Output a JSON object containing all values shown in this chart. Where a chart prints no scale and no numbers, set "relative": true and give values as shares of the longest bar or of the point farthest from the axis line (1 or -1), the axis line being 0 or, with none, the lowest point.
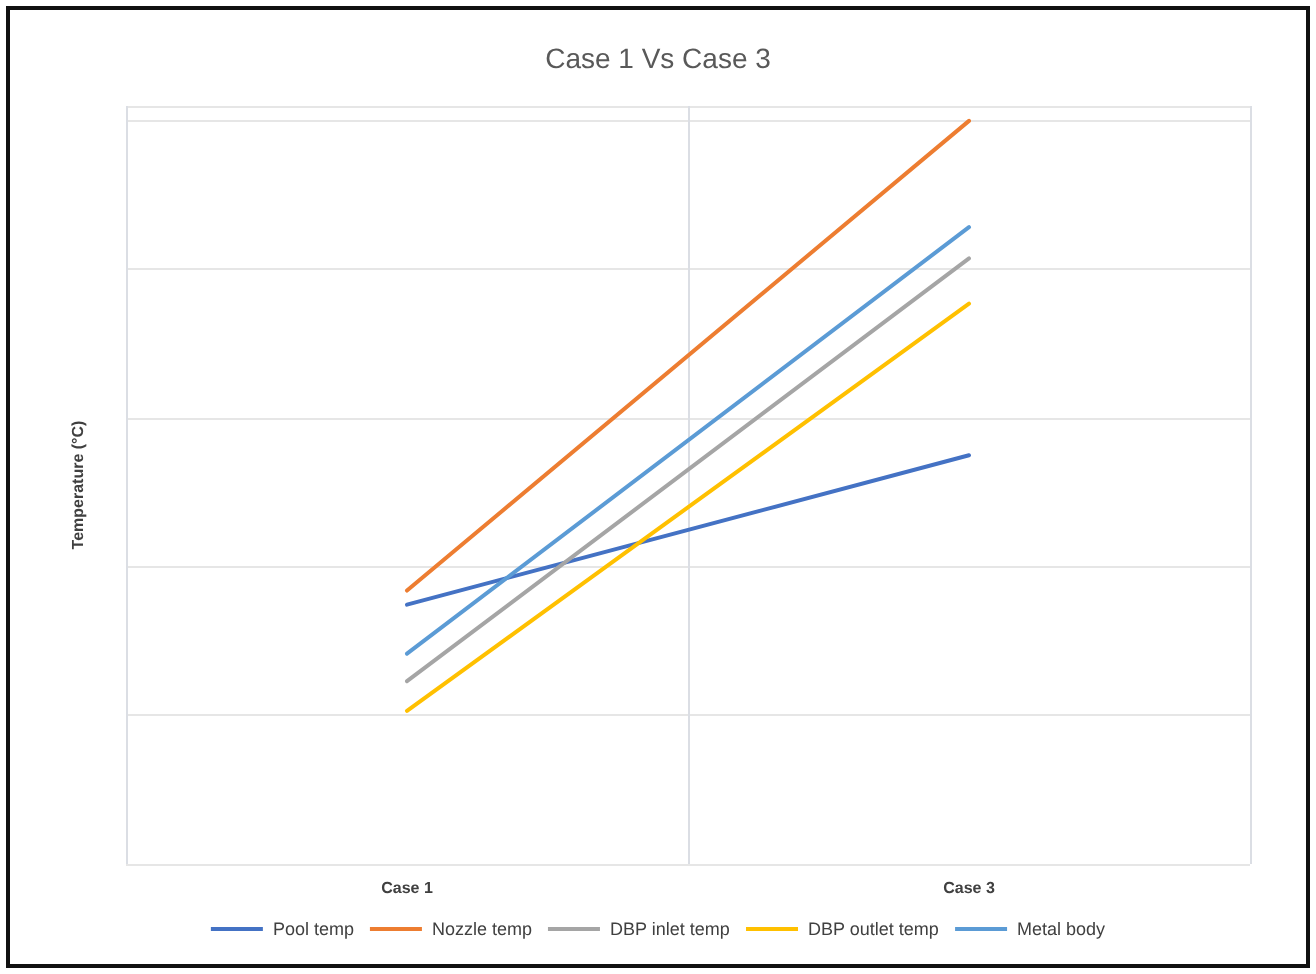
{
  "chart_data": {
    "type": "line",
    "title": "Case 1 Vs Case 3",
    "ylabel": "Temperature (°C)",
    "relative": true,
    "categories": [
      "Case 1",
      "Case 3"
    ],
    "series": [
      {
        "name": "Pool temp",
        "color": "#4472c4",
        "values": [
          0.349,
          0.55
        ]
      },
      {
        "name": "Nozzle temp",
        "color": "#ed7d31",
        "values": [
          0.368,
          1
        ]
      },
      {
        "name": "DBP inlet temp",
        "color": "#a5a5a5",
        "values": [
          0.246,
          0.815
        ]
      },
      {
        "name": "DBP outlet temp",
        "color": "#ffc000",
        "values": [
          0.206,
          0.754
        ]
      },
      {
        "name": "Metal body",
        "color": "#5b9bd5",
        "values": [
          0.283,
          0.857
        ]
      }
    ],
    "grid": true,
    "legend": "bottom",
    "marker": "none",
    "line_style": "solid"
  }
}
